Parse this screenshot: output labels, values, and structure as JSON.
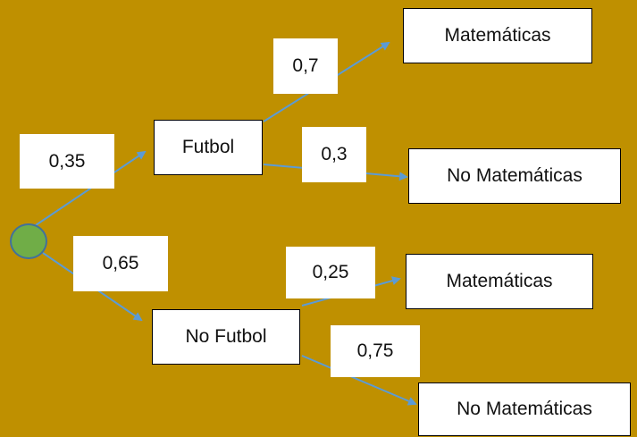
{
  "colors": {
    "background": "#BF9000",
    "edge": "#5B9BD5",
    "root_fill": "#70AD47",
    "root_stroke": "#41719C",
    "box_fill": "#FFFFFF"
  },
  "nodes": {
    "futbol": "Futbol",
    "no_futbol": "No Futbol",
    "futbol_mat": "Matemáticas",
    "futbol_no_mat": "No Matemáticas",
    "no_futbol_mat": "Matemáticas",
    "no_futbol_no_mat": "No Matemáticas"
  },
  "probabilities": {
    "futbol": "0,35",
    "no_futbol": "0,65",
    "futbol_mat": "0,7",
    "futbol_no_mat": "0,3",
    "no_futbol_mat": "0,25",
    "no_futbol_no_mat": "0,75"
  }
}
